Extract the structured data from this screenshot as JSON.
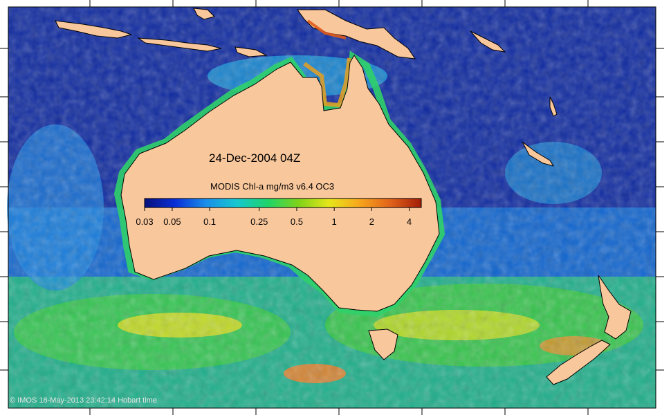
{
  "map": {
    "date_label": "24-Dec-2004 04Z",
    "colorbar": {
      "title": "MODIS Chl-a mg/m3 v6.4 OC3",
      "scale": "log",
      "min": 0.03,
      "max": 5,
      "ticks": [
        {
          "value": 0.03,
          "label": "0.03"
        },
        {
          "value": 0.05,
          "label": "0.05"
        },
        {
          "value": 0.1,
          "label": "0.1"
        },
        {
          "value": 0.25,
          "label": "0.25"
        },
        {
          "value": 0.5,
          "label": "0.5"
        },
        {
          "value": 1,
          "label": "1"
        },
        {
          "value": 2,
          "label": "2"
        },
        {
          "value": 4,
          "label": "4"
        }
      ],
      "colors": [
        "#08107a",
        "#0a2fd8",
        "#1b8ee8",
        "#16c8d0",
        "#1ed46a",
        "#7ed31a",
        "#e6e61a",
        "#f7a51c",
        "#e0621a",
        "#a21c08"
      ]
    },
    "copyright": "© IMOS 18-May-2013 23:42:14 Hobart time",
    "colors": {
      "land": "#f9c79c",
      "coast": "#000000",
      "open_ocean": "#0f2aa0",
      "mid_ocean": "#1470d8",
      "southern_ocean": "#22b86a",
      "high_chl": "#e6d21e",
      "bloom": "#e0621a"
    }
  }
}
